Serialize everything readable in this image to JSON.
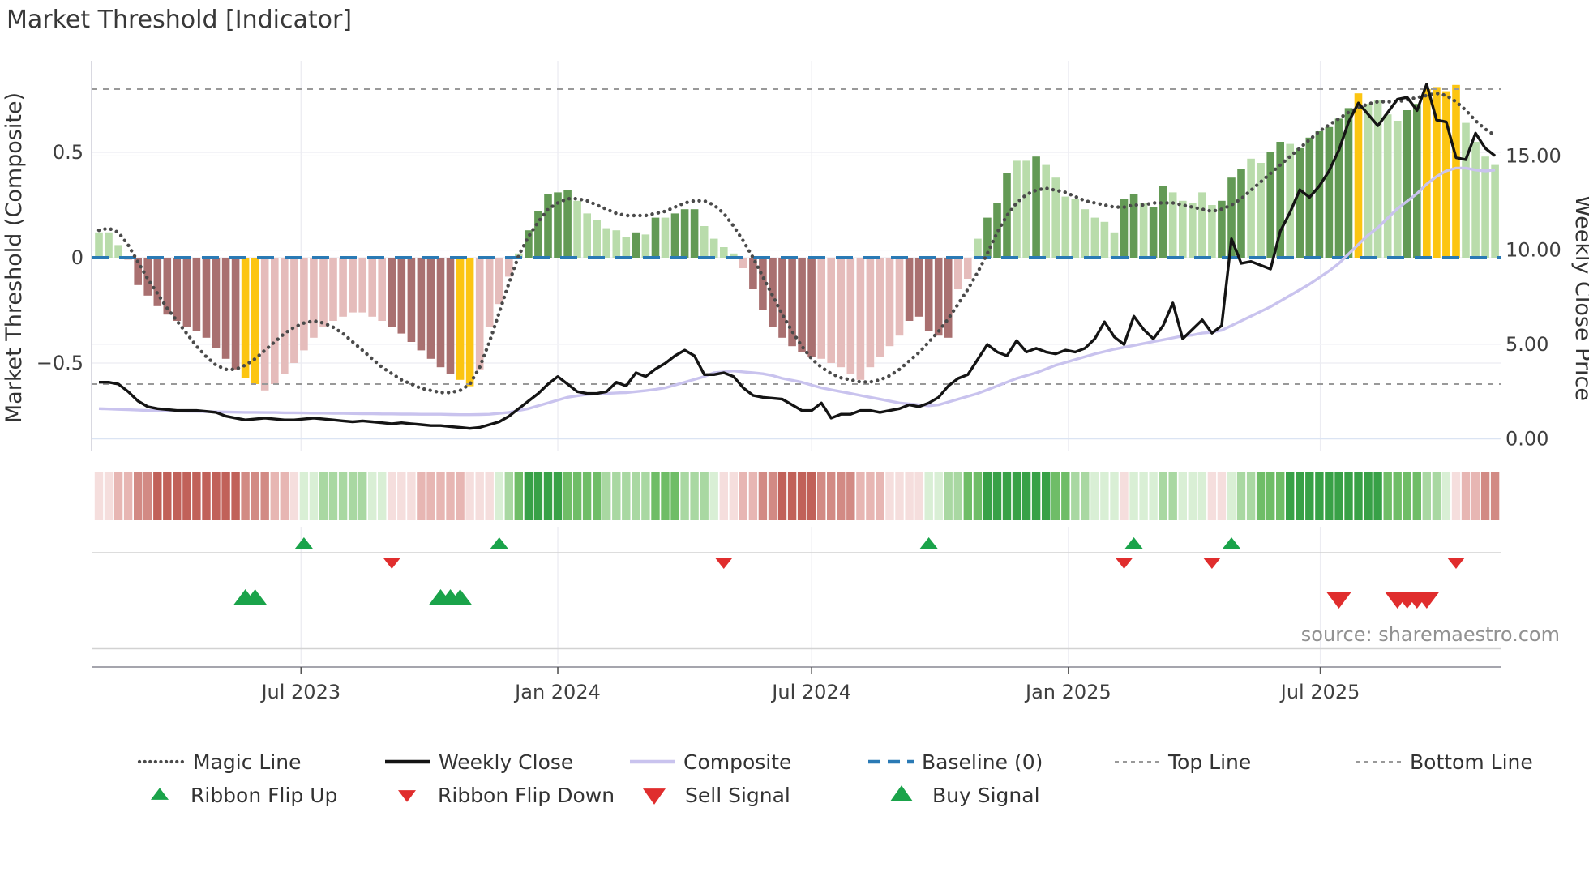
{
  "title": "Market Threshold [Indicator]",
  "source_note": "source: sharemaestro.com",
  "axes": {
    "left_label": "Market Threshold (Composite)",
    "right_label": "Weekly Close Price",
    "left_ticks": [
      {
        "v": 0.5,
        "label": "0.5"
      },
      {
        "v": 0,
        "label": "0"
      },
      {
        "v": -0.5,
        "label": "−0.5"
      }
    ],
    "right_ticks": [
      {
        "v": 15,
        "label": "15.00"
      },
      {
        "v": 10,
        "label": "10.00"
      },
      {
        "v": 5,
        "label": "5.00"
      },
      {
        "v": 0,
        "label": "0.00"
      }
    ],
    "x_ticks": [
      {
        "week": 20.7,
        "label": "Jul 2023"
      },
      {
        "week": 47.0,
        "label": "Jan 2024"
      },
      {
        "week": 73.0,
        "label": "Jul 2024"
      },
      {
        "week": 99.3,
        "label": "Jan 2025"
      },
      {
        "week": 125.1,
        "label": "Jul 2025"
      }
    ]
  },
  "chart_data": {
    "type": "bar",
    "subtype": "weekly composite indicator with overlay lines, heatmap ribbon and signal markers",
    "weeks": 144,
    "start_date": "2023-02-06",
    "frequency": "weekly",
    "left_ylim": [
      -0.92,
      0.94
    ],
    "right_ylim": [
      -0.7,
      20.0
    ],
    "reference_lines": {
      "baseline": 0,
      "top_line": 0.8,
      "bottom_line": -0.6
    },
    "grid": true,
    "series": [
      {
        "name": "Composite Histogram",
        "type": "bar",
        "axis": "left",
        "values": [
          0.12,
          0.12,
          0.06,
          -0.01,
          -0.13,
          -0.18,
          -0.23,
          -0.27,
          -0.3,
          -0.33,
          -0.35,
          -0.38,
          -0.43,
          -0.48,
          -0.53,
          -0.57,
          -0.6,
          -0.63,
          -0.6,
          -0.55,
          -0.5,
          -0.44,
          -0.38,
          -0.33,
          -0.3,
          -0.28,
          -0.26,
          -0.26,
          -0.28,
          -0.3,
          -0.33,
          -0.36,
          -0.4,
          -0.44,
          -0.48,
          -0.52,
          -0.55,
          -0.58,
          -0.61,
          -0.53,
          -0.33,
          -0.22,
          -0.09,
          0.02,
          0.13,
          0.22,
          0.3,
          0.31,
          0.32,
          0.27,
          0.21,
          0.18,
          0.14,
          0.13,
          0.1,
          0.12,
          0.11,
          0.19,
          0.19,
          0.21,
          0.23,
          0.23,
          0.15,
          0.09,
          0.05,
          0.02,
          -0.05,
          -0.15,
          -0.25,
          -0.33,
          -0.38,
          -0.42,
          -0.45,
          -0.47,
          -0.48,
          -0.5,
          -0.52,
          -0.55,
          -0.58,
          -0.52,
          -0.47,
          -0.42,
          -0.37,
          -0.3,
          -0.28,
          -0.35,
          -0.37,
          -0.38,
          -0.15,
          -0.1,
          0.09,
          0.19,
          0.26,
          0.4,
          0.46,
          0.46,
          0.48,
          0.44,
          0.38,
          0.29,
          0.28,
          0.23,
          0.19,
          0.17,
          0.12,
          0.28,
          0.3,
          0.26,
          0.24,
          0.34,
          0.31,
          0.27,
          0.26,
          0.31,
          0.25,
          0.27,
          0.38,
          0.42,
          0.47,
          0.45,
          0.5,
          0.55,
          0.54,
          0.52,
          0.57,
          0.6,
          0.62,
          0.66,
          0.71,
          0.78,
          0.73,
          0.75,
          0.68,
          0.65,
          0.7,
          0.73,
          0.8,
          0.81,
          0.79,
          0.82,
          0.64,
          0.55,
          0.48,
          0.44
        ],
        "shade_codes": "LLLPRRRRRRRRRRRGGPPPPPPPPPPPPPRRRRRRRGGPPPPLDDDDDLLLLLLDLDLDDDLLLLPRRRRRRRPPPPPPPPPRRRRRPPLDDDLLDLLLLLLLLDDLDDLLLLLDDDLLDDLDDDDDDGLLLLDDGGGGLLLL",
        "shade_legend": {
          "D": "dark green",
          "L": "light green",
          "R": "medium red",
          "P": "light pink",
          "G": "gold threshold-extreme"
        }
      },
      {
        "name": "Magic Line",
        "type": "line",
        "axis": "left",
        "values": [
          0.13,
          0.14,
          0.12,
          0.06,
          -0.02,
          -0.1,
          -0.17,
          -0.24,
          -0.3,
          -0.36,
          -0.42,
          -0.47,
          -0.51,
          -0.53,
          -0.53,
          -0.51,
          -0.48,
          -0.44,
          -0.4,
          -0.36,
          -0.33,
          -0.31,
          -0.3,
          -0.31,
          -0.33,
          -0.36,
          -0.4,
          -0.44,
          -0.48,
          -0.52,
          -0.55,
          -0.58,
          -0.6,
          -0.62,
          -0.63,
          -0.64,
          -0.64,
          -0.63,
          -0.6,
          -0.52,
          -0.4,
          -0.26,
          -0.12,
          0.01,
          0.1,
          0.17,
          0.23,
          0.26,
          0.28,
          0.28,
          0.27,
          0.25,
          0.23,
          0.21,
          0.2,
          0.2,
          0.2,
          0.21,
          0.22,
          0.24,
          0.26,
          0.27,
          0.27,
          0.25,
          0.21,
          0.15,
          0.08,
          0.0,
          -0.09,
          -0.18,
          -0.27,
          -0.35,
          -0.42,
          -0.48,
          -0.52,
          -0.55,
          -0.57,
          -0.58,
          -0.59,
          -0.59,
          -0.58,
          -0.56,
          -0.53,
          -0.49,
          -0.45,
          -0.4,
          -0.35,
          -0.29,
          -0.22,
          -0.15,
          -0.07,
          0.02,
          0.12,
          0.2,
          0.26,
          0.3,
          0.32,
          0.33,
          0.32,
          0.31,
          0.29,
          0.27,
          0.26,
          0.25,
          0.24,
          0.24,
          0.25,
          0.25,
          0.26,
          0.26,
          0.26,
          0.25,
          0.24,
          0.23,
          0.22,
          0.23,
          0.25,
          0.28,
          0.32,
          0.36,
          0.4,
          0.44,
          0.48,
          0.52,
          0.56,
          0.6,
          0.63,
          0.66,
          0.69,
          0.71,
          0.73,
          0.74,
          0.74,
          0.74,
          0.75,
          0.76,
          0.77,
          0.78,
          0.77,
          0.74,
          0.7,
          0.65,
          0.61,
          0.58
        ]
      },
      {
        "name": "Weekly Close",
        "type": "line",
        "axis": "right",
        "values": [
          3.0,
          3.0,
          2.9,
          2.5,
          2.0,
          1.7,
          1.6,
          1.55,
          1.5,
          1.5,
          1.5,
          1.45,
          1.4,
          1.2,
          1.1,
          1.0,
          1.05,
          1.1,
          1.05,
          1.0,
          1.0,
          1.05,
          1.1,
          1.05,
          1.0,
          0.95,
          0.9,
          0.95,
          0.9,
          0.85,
          0.8,
          0.85,
          0.8,
          0.75,
          0.7,
          0.7,
          0.65,
          0.6,
          0.55,
          0.6,
          0.75,
          0.9,
          1.2,
          1.6,
          2.0,
          2.4,
          2.9,
          3.3,
          2.9,
          2.5,
          2.4,
          2.4,
          2.5,
          3.0,
          2.8,
          3.5,
          3.3,
          3.7,
          4.0,
          4.4,
          4.7,
          4.4,
          3.4,
          3.4,
          3.5,
          3.3,
          2.7,
          2.3,
          2.2,
          2.15,
          2.1,
          1.8,
          1.5,
          1.5,
          1.9,
          1.1,
          1.3,
          1.3,
          1.5,
          1.5,
          1.4,
          1.5,
          1.6,
          1.8,
          1.7,
          1.9,
          2.2,
          2.8,
          3.2,
          3.4,
          4.2,
          5.0,
          4.6,
          4.4,
          5.2,
          4.6,
          4.8,
          4.6,
          4.5,
          4.7,
          4.6,
          4.8,
          5.3,
          6.2,
          5.4,
          5.0,
          6.5,
          5.8,
          5.3,
          6.0,
          7.2,
          5.3,
          5.8,
          6.3,
          5.6,
          6.0,
          10.6,
          9.3,
          9.4,
          9.2,
          9.0,
          11.0,
          12.0,
          13.2,
          12.8,
          13.4,
          14.2,
          15.3,
          16.8,
          17.8,
          17.2,
          16.6,
          17.3,
          18.0,
          18.1,
          17.4,
          18.8,
          16.9,
          16.8,
          14.9,
          14.8,
          16.2,
          15.4,
          15.0
        ]
      },
      {
        "name": "Composite",
        "type": "line",
        "axis": "right",
        "values": [
          1.6,
          1.58,
          1.56,
          1.54,
          1.52,
          1.5,
          1.49,
          1.48,
          1.47,
          1.46,
          1.45,
          1.44,
          1.43,
          1.42,
          1.41,
          1.4,
          1.4,
          1.39,
          1.39,
          1.38,
          1.38,
          1.37,
          1.36,
          1.36,
          1.35,
          1.35,
          1.34,
          1.33,
          1.33,
          1.32,
          1.32,
          1.31,
          1.31,
          1.3,
          1.3,
          1.3,
          1.29,
          1.28,
          1.28,
          1.29,
          1.3,
          1.35,
          1.4,
          1.5,
          1.6,
          1.75,
          1.9,
          2.05,
          2.2,
          2.28,
          2.35,
          2.38,
          2.4,
          2.43,
          2.45,
          2.5,
          2.55,
          2.62,
          2.7,
          2.85,
          3.0,
          3.15,
          3.3,
          3.5,
          3.55,
          3.6,
          3.55,
          3.5,
          3.45,
          3.35,
          3.2,
          3.1,
          3.0,
          2.85,
          2.7,
          2.6,
          2.5,
          2.4,
          2.3,
          2.2,
          2.1,
          2.0,
          1.9,
          1.85,
          1.8,
          1.75,
          1.8,
          1.95,
          2.1,
          2.25,
          2.4,
          2.6,
          2.8,
          3.0,
          3.2,
          3.35,
          3.5,
          3.7,
          3.9,
          4.05,
          4.2,
          4.35,
          4.5,
          4.62,
          4.75,
          4.85,
          4.95,
          5.05,
          5.15,
          5.25,
          5.35,
          5.45,
          5.5,
          5.6,
          5.65,
          5.75,
          6.0,
          6.25,
          6.5,
          6.75,
          7.0,
          7.3,
          7.6,
          7.9,
          8.2,
          8.55,
          8.9,
          9.3,
          9.8,
          10.3,
          10.8,
          11.2,
          11.7,
          12.2,
          12.6,
          13.0,
          13.5,
          13.9,
          14.2,
          14.35,
          14.35,
          14.25,
          14.2,
          14.25
        ]
      },
      {
        "name": "Ribbon",
        "type": "heatmap",
        "values": [
          -1,
          -1,
          -2,
          -2,
          -3,
          -3,
          -4,
          -4,
          -4,
          -4,
          -4,
          -4,
          -4,
          -4,
          -4,
          -3,
          -3,
          -3,
          -2,
          -2,
          -1,
          1,
          1,
          2,
          2,
          2,
          2,
          2,
          1,
          1,
          -1,
          -1,
          -1,
          -2,
          -2,
          -2,
          -2,
          -2,
          -1,
          -1,
          -1,
          1,
          2,
          3,
          4,
          4,
          4,
          4,
          3,
          3,
          3,
          3,
          2,
          2,
          2,
          2,
          2,
          3,
          3,
          3,
          2,
          2,
          2,
          1,
          -1,
          -1,
          -2,
          -2,
          -3,
          -3,
          -4,
          -4,
          -4,
          -4,
          -3,
          -3,
          -3,
          -3,
          -2,
          -2,
          -2,
          -1,
          -1,
          -1,
          -1,
          1,
          1,
          2,
          2,
          3,
          3,
          4,
          4,
          4,
          4,
          4,
          4,
          4,
          3,
          3,
          2,
          2,
          1,
          1,
          1,
          -1,
          1,
          1,
          1,
          2,
          2,
          1,
          1,
          1,
          -1,
          -1,
          1,
          2,
          2,
          3,
          3,
          3,
          4,
          4,
          4,
          4,
          4,
          4,
          4,
          4,
          4,
          4,
          3,
          3,
          3,
          3,
          2,
          2,
          1,
          -1,
          -2,
          -2,
          -3,
          -3
        ],
        "scale": "negative = red (bearish), positive = green (bullish), magnitude 1-4 = color intensity"
      }
    ],
    "signals": {
      "ribbon_flip_up_weeks": [
        21,
        41,
        85,
        106,
        116
      ],
      "ribbon_flip_down_weeks": [
        30,
        64,
        105,
        114,
        139
      ],
      "buy_signal_weeks": [
        15,
        16,
        35,
        36,
        37
      ],
      "sell_signal_weeks": [
        127,
        133,
        134,
        135,
        136
      ]
    }
  },
  "legend": {
    "row1": [
      {
        "label": "Magic Line",
        "swatch": "dotted-gray"
      },
      {
        "label": "Weekly Close",
        "swatch": "solid-black"
      },
      {
        "label": "Composite",
        "swatch": "solid-lavender"
      },
      {
        "label": "Baseline (0)",
        "swatch": "dashed-blue"
      },
      {
        "label": "Top Line",
        "swatch": "dashed-gray"
      },
      {
        "label": "Bottom Line",
        "swatch": "dashed-gray"
      }
    ],
    "row2": [
      {
        "label": "Ribbon Flip Up",
        "marker": "up-small-green"
      },
      {
        "label": "Ribbon Flip Down",
        "marker": "down-small-red"
      },
      {
        "label": "Sell Signal",
        "marker": "down-large-red"
      },
      {
        "label": "Buy Signal",
        "marker": "up-large-green"
      }
    ]
  },
  "colors": {
    "bar_dark_green": "#639a55",
    "bar_light_green": "#b9dcab",
    "bar_medium_red": "#a97070",
    "bar_light_pink": "#e5bcbb",
    "bar_gold": "#fcc511",
    "baseline_blue": "#2a7ab5",
    "magic_line": "#4a4a4a",
    "top_bottom_line": "#999999",
    "weekly_close": "#141414",
    "composite_line": "#c9c3ee",
    "signal_green": "#1aa34a",
    "signal_red": "#e02d2d",
    "ribbon_red": [
      "#f5dedd",
      "#e7b6b3",
      "#d28a84",
      "#c16159"
    ],
    "ribbon_green": [
      "#d9efd5",
      "#a9d8a2",
      "#6fbd67",
      "#38a147"
    ],
    "grid": "#ececf2",
    "spine": "#c9c9d4"
  }
}
